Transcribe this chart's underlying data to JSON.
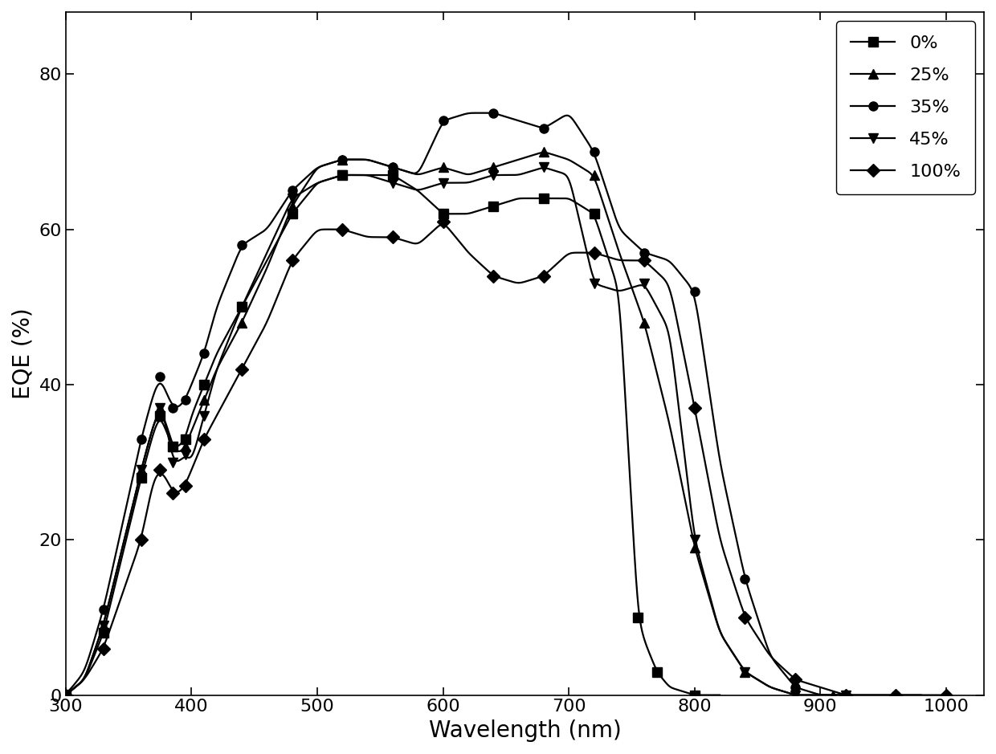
{
  "title": "",
  "xlabel": "Wavelength (nm)",
  "ylabel": "EQE (%)",
  "xlim": [
    300,
    1030
  ],
  "ylim": [
    0,
    88
  ],
  "yticks": [
    0,
    20,
    40,
    60,
    80
  ],
  "xticks": [
    300,
    400,
    500,
    600,
    700,
    800,
    900,
    1000
  ],
  "series": {
    "0%": {
      "marker": "s",
      "x": [
        300,
        315,
        330,
        345,
        360,
        370,
        375,
        380,
        385,
        390,
        395,
        400,
        410,
        420,
        440,
        460,
        480,
        500,
        520,
        540,
        560,
        580,
        600,
        620,
        640,
        660,
        680,
        700,
        720,
        740,
        755,
        760,
        770,
        780,
        800,
        820
      ],
      "y": [
        0,
        2,
        8,
        18,
        28,
        34,
        36,
        34,
        32,
        32,
        33,
        36,
        40,
        44,
        50,
        56,
        62,
        66,
        67,
        67,
        67,
        65,
        62,
        62,
        63,
        64,
        64,
        64,
        62,
        52,
        10,
        7,
        3,
        1,
        0,
        0
      ]
    },
    "25%": {
      "marker": "^",
      "x": [
        300,
        315,
        330,
        345,
        360,
        370,
        375,
        380,
        385,
        390,
        395,
        400,
        410,
        420,
        440,
        460,
        480,
        500,
        520,
        540,
        560,
        580,
        600,
        620,
        640,
        660,
        680,
        700,
        720,
        740,
        760,
        780,
        800,
        820,
        840,
        860,
        880,
        900,
        910,
        920
      ],
      "y": [
        0,
        2,
        9,
        19,
        29,
        35,
        37,
        35,
        32,
        31,
        32,
        34,
        38,
        42,
        48,
        55,
        63,
        68,
        69,
        69,
        68,
        67,
        68,
        67,
        68,
        69,
        70,
        69,
        67,
        57,
        48,
        35,
        19,
        8,
        3,
        1,
        0,
        0,
        0,
        0
      ]
    },
    "35%": {
      "marker": "o",
      "x": [
        300,
        315,
        330,
        345,
        360,
        370,
        375,
        380,
        385,
        390,
        395,
        400,
        410,
        420,
        440,
        460,
        480,
        500,
        520,
        540,
        560,
        580,
        600,
        620,
        640,
        660,
        680,
        700,
        720,
        740,
        760,
        780,
        800,
        820,
        840,
        860,
        880,
        900,
        920,
        940,
        960,
        980
      ],
      "y": [
        0,
        3,
        11,
        22,
        33,
        39,
        41,
        39,
        37,
        37,
        38,
        40,
        44,
        50,
        58,
        60,
        65,
        68,
        69,
        69,
        68,
        67,
        74,
        75,
        75,
        74,
        73,
        75,
        70,
        60,
        57,
        56,
        52,
        30,
        15,
        5,
        1,
        0,
        0,
        0,
        0,
        0
      ]
    },
    "45%": {
      "marker": "v",
      "x": [
        300,
        315,
        330,
        345,
        360,
        370,
        375,
        380,
        385,
        390,
        395,
        400,
        410,
        420,
        440,
        460,
        480,
        500,
        520,
        540,
        560,
        580,
        600,
        620,
        640,
        660,
        680,
        700,
        720,
        740,
        760,
        780,
        800,
        820,
        840,
        860,
        880,
        900,
        920
      ],
      "y": [
        0,
        2,
        9,
        19,
        29,
        35,
        37,
        35,
        30,
        30,
        31,
        30,
        36,
        42,
        50,
        57,
        64,
        66,
        67,
        67,
        66,
        65,
        66,
        66,
        67,
        67,
        68,
        67,
        53,
        52,
        53,
        47,
        20,
        8,
        3,
        1,
        0,
        0,
        0
      ]
    },
    "100%": {
      "marker": "D",
      "x": [
        300,
        315,
        330,
        345,
        360,
        370,
        375,
        380,
        385,
        390,
        395,
        400,
        410,
        420,
        440,
        460,
        480,
        500,
        520,
        540,
        560,
        580,
        600,
        620,
        640,
        660,
        680,
        700,
        720,
        740,
        760,
        780,
        800,
        820,
        840,
        860,
        880,
        900,
        920,
        940,
        960,
        980,
        1000
      ],
      "y": [
        0,
        2,
        6,
        13,
        20,
        28,
        29,
        28,
        26,
        26,
        27,
        29,
        33,
        36,
        42,
        48,
        56,
        60,
        60,
        59,
        59,
        58,
        61,
        57,
        54,
        53,
        54,
        57,
        57,
        56,
        56,
        53,
        37,
        20,
        10,
        5,
        2,
        1,
        0,
        0,
        0,
        0,
        0
      ]
    }
  },
  "color": "#000000",
  "linewidth": 1.6,
  "markersize": 8,
  "legend_fontsize": 16,
  "tick_labelsize": 16,
  "axis_labelsize": 20
}
